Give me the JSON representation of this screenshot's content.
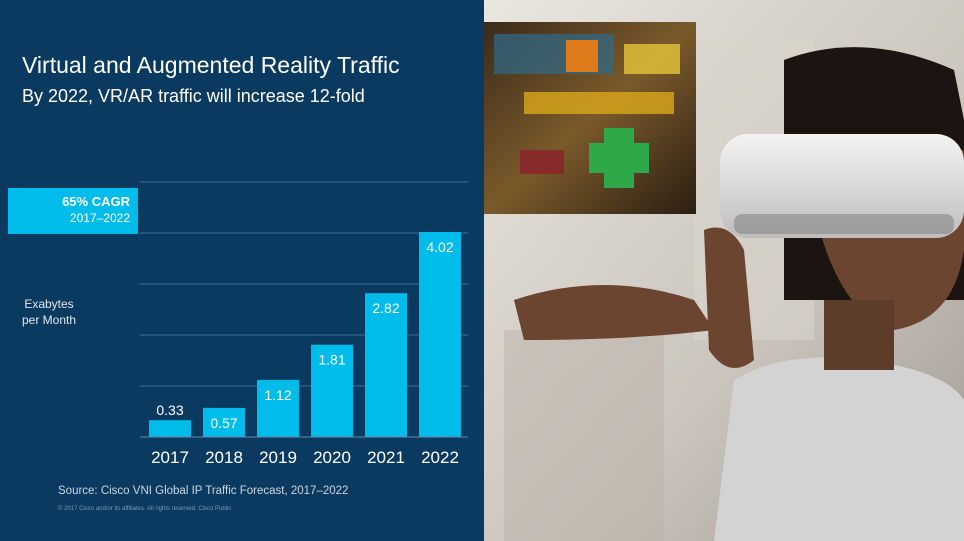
{
  "slide": {
    "title": "Virtual and Augmented Reality Traffic",
    "subtitle": "By 2022, VR/AR traffic will increase 12-fold",
    "cagr": {
      "label": "65% CAGR",
      "period": "2017–2022"
    },
    "ylabel": "Exabytes per Month",
    "source": "Source: Cisco VNI Global IP Traffic Forecast, 2017–2022",
    "copyright": "© 2017 Cisco and/or its affiliates. All rights reserved. Cisco Public"
  },
  "chart_data": {
    "type": "bar",
    "categories": [
      "2017",
      "2018",
      "2019",
      "2020",
      "2021",
      "2022"
    ],
    "values": [
      0.33,
      0.57,
      1.12,
      1.81,
      2.82,
      4.02
    ],
    "data_labels": [
      "0.33",
      "0.57",
      "1.12",
      "1.81",
      "2.82",
      "4.02"
    ],
    "ylim": [
      0,
      5
    ],
    "grid": true,
    "bar_color": "#00bceb"
  },
  "colors": {
    "background": "#0b3a60",
    "accent": "#00bceb",
    "text": "#ffffff"
  }
}
